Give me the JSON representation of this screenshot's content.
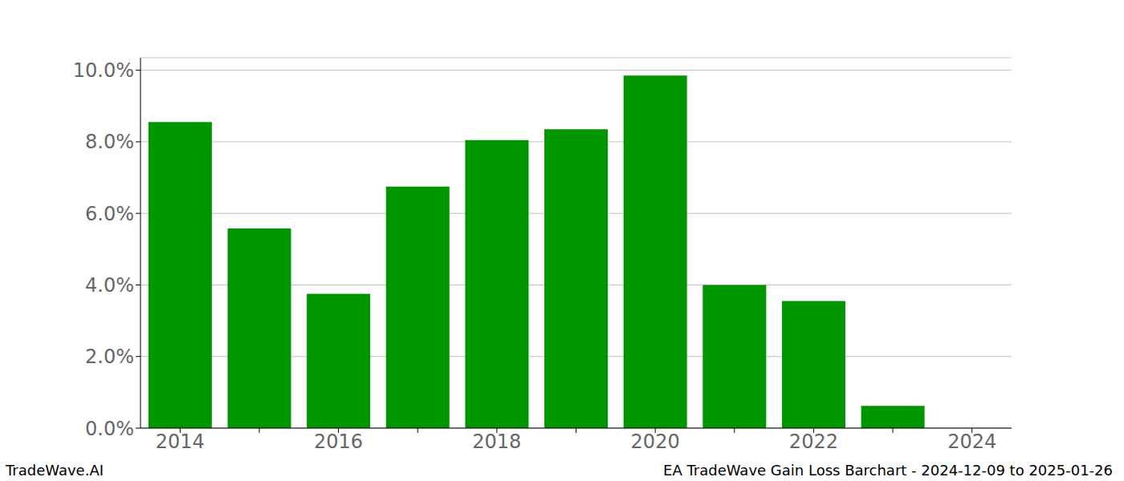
{
  "chart_data": {
    "type": "bar",
    "title": "EA TradeWave Gain Loss Barchart - 2024-12-09 to 2025-01-26",
    "source": "TradeWave.AI",
    "categories": [
      "2014",
      null,
      "2016",
      null,
      "2018",
      null,
      "2020",
      null,
      "2022",
      null,
      "2024"
    ],
    "values": [
      8.55,
      5.58,
      3.75,
      6.75,
      8.05,
      8.35,
      9.85,
      4.0,
      3.55,
      0.62,
      0
    ],
    "color": "#009600",
    "ylim": [
      0,
      10.35
    ],
    "yticks": [
      {
        "value": 0,
        "label": "0.0%"
      },
      {
        "value": 2,
        "label": "2.0%"
      },
      {
        "value": 4,
        "label": "4.0%"
      },
      {
        "value": 6,
        "label": "6.0%"
      },
      {
        "value": 8,
        "label": "8.0%"
      },
      {
        "value": 10,
        "label": "10.0%"
      }
    ],
    "grid": true
  }
}
